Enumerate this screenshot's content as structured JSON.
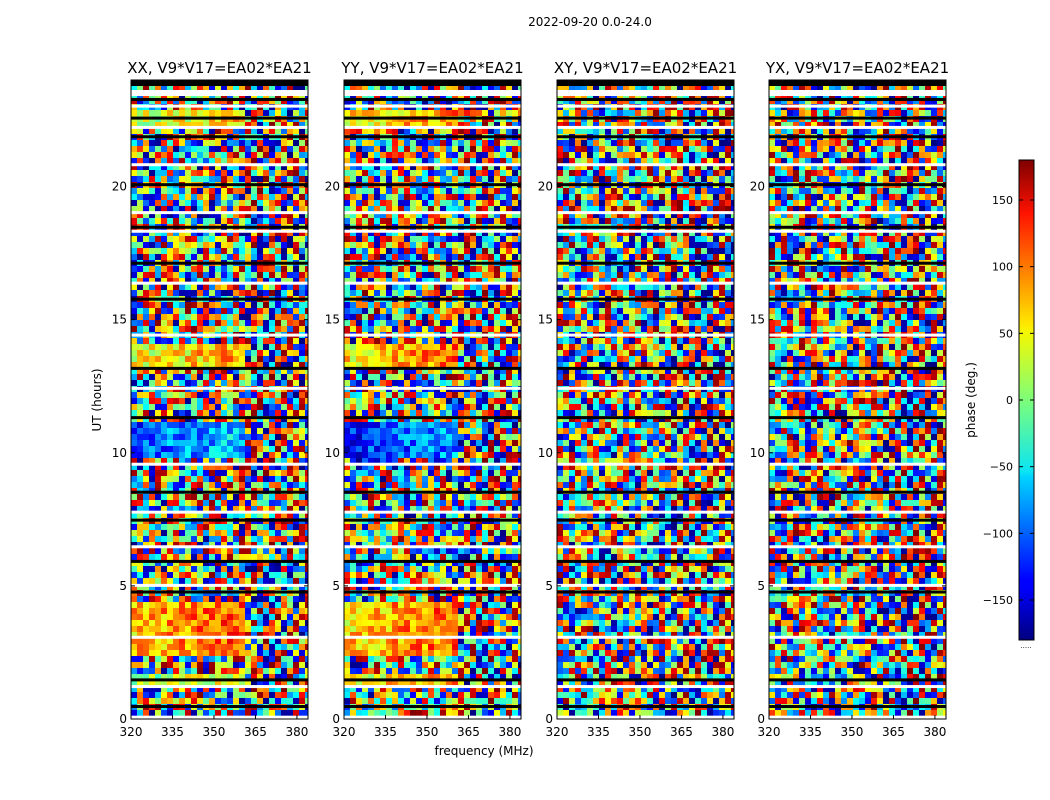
{
  "suptitle": "2022-09-20 0.0-24.0",
  "chart_data": {
    "type": "heatmap",
    "title": "2022-09-20 0.0-24.0",
    "xlabel": "frequency (MHz)",
    "ylabel": "UT (hours)",
    "xlim": [
      320,
      384
    ],
    "ylim": [
      0,
      24
    ],
    "xticks": [
      320,
      335,
      350,
      365,
      380
    ],
    "yticks": [
      0,
      5,
      10,
      15,
      20
    ],
    "panels": [
      {
        "title": "XX, V9*V17=EA02*EA21",
        "pol": "XX"
      },
      {
        "title": "YY, V9*V17=EA02*EA21",
        "pol": "YY"
      },
      {
        "title": "XY, V9*V17=EA02*EA21",
        "pol": "XY"
      },
      {
        "title": "YX, V9*V17=EA02*EA21",
        "pol": "YX"
      }
    ],
    "colorbar": {
      "label": "phase (deg.)",
      "range": [
        -180,
        180
      ],
      "ticks": [
        -150,
        -100,
        -50,
        0,
        50,
        100,
        150
      ],
      "tick_labels": [
        "−150",
        "−100",
        "−50",
        "0",
        "50",
        "100",
        "150"
      ],
      "colormap": "jet"
    },
    "gaps_hours": [
      0.05,
      0.45,
      1.2,
      1.45,
      3.05,
      4.75,
      5.0,
      5.9,
      6.45,
      7.45,
      7.75,
      8.5,
      9.55,
      11.3,
      12.4,
      13.15,
      14.4,
      15.75,
      16.35,
      17.1,
      18.3,
      18.45,
      19.0,
      20.05,
      20.8,
      21.85,
      22.2,
      22.55,
      23.0,
      23.25
    ]
  },
  "colorbar_footnote": "....."
}
